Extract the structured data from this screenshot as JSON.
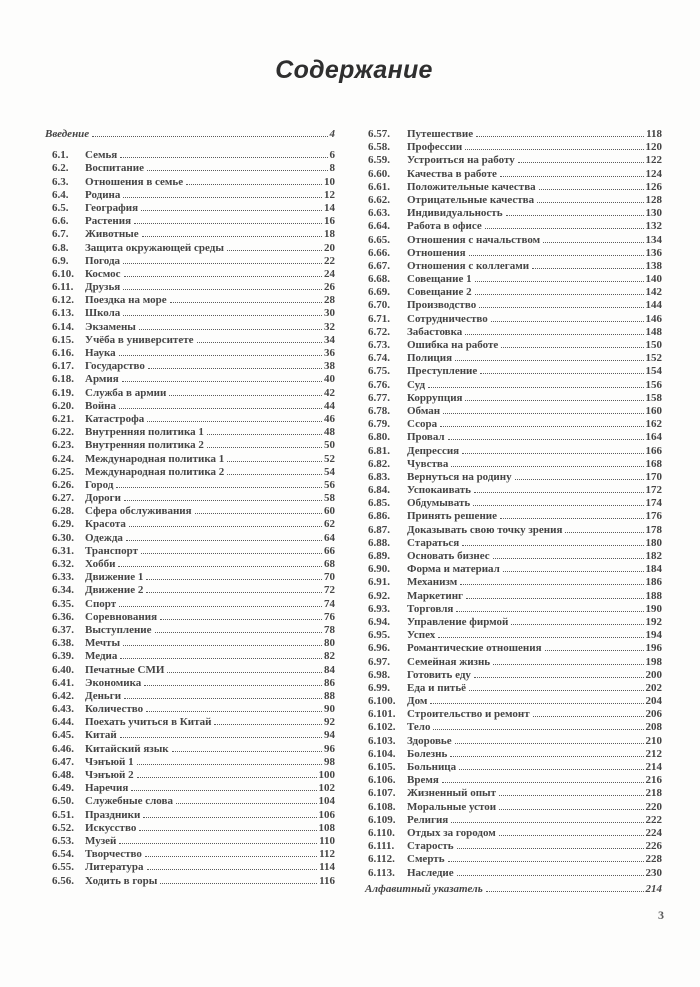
{
  "page": {
    "title": "Содержание",
    "footer_page_number": "3"
  },
  "toc": {
    "intro": {
      "label": "Введение",
      "page": "4"
    },
    "index": {
      "label": "Алфавитный указатель",
      "page": "214"
    },
    "left_entries": [
      {
        "num": "6.1.",
        "title": "Семья",
        "page": "6"
      },
      {
        "num": "6.2.",
        "title": "Воспитание",
        "page": "8"
      },
      {
        "num": "6.3.",
        "title": "Отношения в семье",
        "page": "10"
      },
      {
        "num": "6.4.",
        "title": "Родина",
        "page": "12"
      },
      {
        "num": "6.5.",
        "title": "География",
        "page": "14"
      },
      {
        "num": "6.6.",
        "title": "Растения",
        "page": "16"
      },
      {
        "num": "6.7.",
        "title": "Животные",
        "page": "18"
      },
      {
        "num": "6.8.",
        "title": "Защита окружающей среды",
        "page": "20"
      },
      {
        "num": "6.9.",
        "title": "Погода",
        "page": "22"
      },
      {
        "num": "6.10.",
        "title": "Космос",
        "page": "24"
      },
      {
        "num": "6.11.",
        "title": "Друзья",
        "page": "26"
      },
      {
        "num": "6.12.",
        "title": "Поездка на море",
        "page": "28"
      },
      {
        "num": "6.13.",
        "title": "Школа",
        "page": "30"
      },
      {
        "num": "6.14.",
        "title": "Экзамены",
        "page": "32"
      },
      {
        "num": "6.15.",
        "title": "Учёба в университете",
        "page": "34"
      },
      {
        "num": "6.16.",
        "title": "Наука",
        "page": "36"
      },
      {
        "num": "6.17.",
        "title": "Государство",
        "page": "38"
      },
      {
        "num": "6.18.",
        "title": "Армия",
        "page": "40"
      },
      {
        "num": "6.19.",
        "title": "Служба в армии",
        "page": "42"
      },
      {
        "num": "6.20.",
        "title": "Война",
        "page": "44"
      },
      {
        "num": "6.21.",
        "title": "Катастрофа",
        "page": "46"
      },
      {
        "num": "6.22.",
        "title": "Внутренняя политика 1",
        "page": "48"
      },
      {
        "num": "6.23.",
        "title": "Внутренняя политика 2",
        "page": "50"
      },
      {
        "num": "6.24.",
        "title": "Международная политика 1",
        "page": "52"
      },
      {
        "num": "6.25.",
        "title": "Международная политика 2",
        "page": "54"
      },
      {
        "num": "6.26.",
        "title": "Город",
        "page": "56"
      },
      {
        "num": "6.27.",
        "title": "Дороги",
        "page": "58"
      },
      {
        "num": "6.28.",
        "title": "Сфера обслуживания",
        "page": "60"
      },
      {
        "num": "6.29.",
        "title": "Красота",
        "page": "62"
      },
      {
        "num": "6.30.",
        "title": "Одежда",
        "page": "64"
      },
      {
        "num": "6.31.",
        "title": "Транспорт",
        "page": "66"
      },
      {
        "num": "6.32.",
        "title": "Хобби",
        "page": "68"
      },
      {
        "num": "6.33.",
        "title": "Движение 1",
        "page": "70"
      },
      {
        "num": "6.34.",
        "title": "Движение 2",
        "page": "72"
      },
      {
        "num": "6.35.",
        "title": "Спорт",
        "page": "74"
      },
      {
        "num": "6.36.",
        "title": "Соревнования",
        "page": "76"
      },
      {
        "num": "6.37.",
        "title": "Выступление",
        "page": "78"
      },
      {
        "num": "6.38.",
        "title": "Мечты",
        "page": "80"
      },
      {
        "num": "6.39.",
        "title": "Медиа",
        "page": "82"
      },
      {
        "num": "6.40.",
        "title": "Печатные СМИ",
        "page": "84"
      },
      {
        "num": "6.41.",
        "title": "Экономика",
        "page": "86"
      },
      {
        "num": "6.42.",
        "title": "Деньги",
        "page": "88"
      },
      {
        "num": "6.43.",
        "title": "Количество",
        "page": "90"
      },
      {
        "num": "6.44.",
        "title": "Поехать учиться в Китай",
        "page": "92"
      },
      {
        "num": "6.45.",
        "title": "Китай",
        "page": "94"
      },
      {
        "num": "6.46.",
        "title": "Китайский язык",
        "page": "96"
      },
      {
        "num": "6.47.",
        "title": "Чэнъюй 1",
        "page": "98"
      },
      {
        "num": "6.48.",
        "title": "Чэнъюй 2",
        "page": "100"
      },
      {
        "num": "6.49.",
        "title": "Наречия",
        "page": "102"
      },
      {
        "num": "6.50.",
        "title": "Служебные слова",
        "page": "104"
      },
      {
        "num": "6.51.",
        "title": "Праздники",
        "page": "106"
      },
      {
        "num": "6.52.",
        "title": "Искусство",
        "page": "108"
      },
      {
        "num": "6.53.",
        "title": "Музей",
        "page": "110"
      },
      {
        "num": "6.54.",
        "title": "Творчество",
        "page": "112"
      },
      {
        "num": "6.55.",
        "title": "Литература",
        "page": "114"
      },
      {
        "num": "6.56.",
        "title": "Ходить в горы",
        "page": "116"
      }
    ],
    "right_entries": [
      {
        "num": "6.57.",
        "title": "Путешествие",
        "page": "118"
      },
      {
        "num": "6.58.",
        "title": "Профессии",
        "page": "120"
      },
      {
        "num": "6.59.",
        "title": "Устроиться на работу",
        "page": "122"
      },
      {
        "num": "6.60.",
        "title": "Качества в работе",
        "page": "124"
      },
      {
        "num": "6.61.",
        "title": "Положительные качества",
        "page": "126"
      },
      {
        "num": "6.62.",
        "title": "Отрицательные качества",
        "page": "128"
      },
      {
        "num": "6.63.",
        "title": "Индивидуальность",
        "page": "130"
      },
      {
        "num": "6.64.",
        "title": "Работа в офисе",
        "page": "132"
      },
      {
        "num": "6.65.",
        "title": "Отношения с начальством",
        "page": "134"
      },
      {
        "num": "6.66.",
        "title": "Отношения",
        "page": "136"
      },
      {
        "num": "6.67.",
        "title": "Отношения с коллегами",
        "page": "138"
      },
      {
        "num": "6.68.",
        "title": "Совещание 1",
        "page": "140"
      },
      {
        "num": "6.69.",
        "title": "Совещание 2",
        "page": "142"
      },
      {
        "num": "6.70.",
        "title": "Производство",
        "page": "144"
      },
      {
        "num": "6.71.",
        "title": "Сотрудничество",
        "page": "146"
      },
      {
        "num": "6.72.",
        "title": "Забастовка",
        "page": "148"
      },
      {
        "num": "6.73.",
        "title": "Ошибка на работе",
        "page": "150"
      },
      {
        "num": "6.74.",
        "title": "Полиция",
        "page": "152"
      },
      {
        "num": "6.75.",
        "title": "Преступление",
        "page": "154"
      },
      {
        "num": "6.76.",
        "title": "Суд",
        "page": "156"
      },
      {
        "num": "6.77.",
        "title": "Коррупция",
        "page": "158"
      },
      {
        "num": "6.78.",
        "title": "Обман",
        "page": "160"
      },
      {
        "num": "6.79.",
        "title": "Ссора",
        "page": "162"
      },
      {
        "num": "6.80.",
        "title": "Провал",
        "page": "164"
      },
      {
        "num": "6.81.",
        "title": "Депрессия",
        "page": "166"
      },
      {
        "num": "6.82.",
        "title": "Чувства",
        "page": "168"
      },
      {
        "num": "6.83.",
        "title": "Вернуться на родину",
        "page": "170"
      },
      {
        "num": "6.84.",
        "title": "Успокаивать",
        "page": "172"
      },
      {
        "num": "6.85.",
        "title": "Обдумывать",
        "page": "174"
      },
      {
        "num": "6.86.",
        "title": "Принять решение",
        "page": "176"
      },
      {
        "num": "6.87.",
        "title": "Доказывать свою точку зрения",
        "page": "178"
      },
      {
        "num": "6.88.",
        "title": "Стараться",
        "page": "180"
      },
      {
        "num": "6.89.",
        "title": "Основать бизнес",
        "page": "182"
      },
      {
        "num": "6.90.",
        "title": "Форма и материал",
        "page": "184"
      },
      {
        "num": "6.91.",
        "title": "Механизм",
        "page": "186"
      },
      {
        "num": "6.92.",
        "title": "Маркетинг",
        "page": "188"
      },
      {
        "num": "6.93.",
        "title": "Торговля",
        "page": "190"
      },
      {
        "num": "6.94.",
        "title": "Управление фирмой",
        "page": "192"
      },
      {
        "num": "6.95.",
        "title": "Успех",
        "page": "194"
      },
      {
        "num": "6.96.",
        "title": "Романтические отношения",
        "page": "196"
      },
      {
        "num": "6.97.",
        "title": "Семейная жизнь",
        "page": "198"
      },
      {
        "num": "6.98.",
        "title": "Готовить еду",
        "page": "200"
      },
      {
        "num": "6.99.",
        "title": "Еда и питьё",
        "page": "202"
      },
      {
        "num": "6.100.",
        "title": "Дом",
        "page": "204"
      },
      {
        "num": "6.101.",
        "title": "Строительство и ремонт",
        "page": "206"
      },
      {
        "num": "6.102.",
        "title": "Тело",
        "page": "208"
      },
      {
        "num": "6.103.",
        "title": "Здоровье",
        "page": "210"
      },
      {
        "num": "6.104.",
        "title": "Болезнь",
        "page": "212"
      },
      {
        "num": "6.105.",
        "title": "Больница",
        "page": "214"
      },
      {
        "num": "6.106.",
        "title": "Время",
        "page": "216"
      },
      {
        "num": "6.107.",
        "title": "Жизненный опыт",
        "page": "218"
      },
      {
        "num": "6.108.",
        "title": "Моральные устои",
        "page": "220"
      },
      {
        "num": "6.109.",
        "title": "Религия",
        "page": "222"
      },
      {
        "num": "6.110.",
        "title": "Отдых за городом",
        "page": "224"
      },
      {
        "num": "6.111.",
        "title": "Старость",
        "page": "226"
      },
      {
        "num": "6.112.",
        "title": "Смерть",
        "page": "228"
      },
      {
        "num": "6.113.",
        "title": "Наследие",
        "page": "230"
      }
    ]
  }
}
